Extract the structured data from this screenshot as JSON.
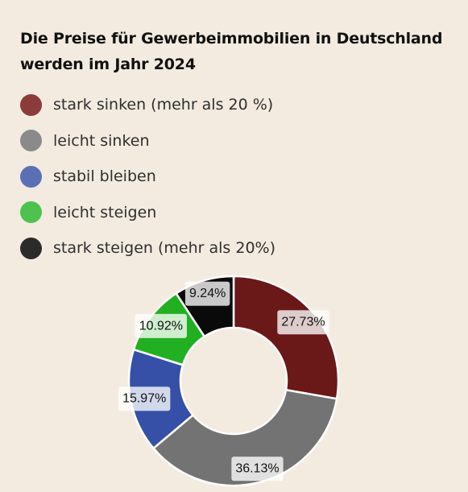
{
  "chart_data": {
    "type": "pie",
    "donut": true,
    "title": "Die Preise für Gewerbeimmobilien in Deutschland werden im Jahr 2024",
    "legend_position": "top-left",
    "categories": [
      "stark sinken (mehr als 20 %)",
      "leicht sinken",
      "stabil bleiben",
      "leicht steigen",
      "stark steigen (mehr als 20%)"
    ],
    "values": [
      27.73,
      36.13,
      15.97,
      10.92,
      9.24
    ],
    "value_labels": [
      "27.73%",
      "36.13%",
      "15.97%",
      "10.92%",
      "9.24%"
    ],
    "legend_colors": [
      "#8c3b3b",
      "#8a8a8a",
      "#5b6fb5",
      "#4ec24e",
      "#2b2b2b"
    ],
    "slice_colors": [
      "#6b1818",
      "#737373",
      "#3550a6",
      "#22b022",
      "#0a0a0a"
    ]
  }
}
